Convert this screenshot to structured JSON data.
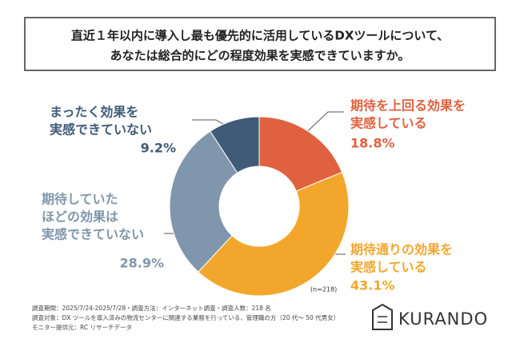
{
  "chart_data": {
    "type": "pie",
    "donut": true,
    "title": [
      "直近１年以内に導入し最も優先的に活用しているDXツールについて、",
      "あなたは総合的にどの程度効果を実感できていますか。"
    ],
    "categories": [
      [
        "期待を上回る効果を",
        "実感している"
      ],
      [
        "期待通りの効果を",
        "実感している"
      ],
      [
        "期待していた",
        "ほどの効果は",
        "実感できていない"
      ],
      [
        "まったく効果を",
        "実感できていない"
      ]
    ],
    "values": [
      18.8,
      43.1,
      28.9,
      9.2
    ],
    "value_labels": [
      "18.8%",
      "43.1%",
      "28.9%",
      "9.2%"
    ],
    "colors": [
      "#e0613f",
      "#f2a72c",
      "#8096ac",
      "#3f5b78"
    ],
    "note": "(n=218)",
    "footer": [
      "調査期間：2025/7/24-2025/7/28・調査方法：インターネット調査・調査人数：218 名",
      "調査対象：DX ツールを導入済みの物流センターに関連する業務を行っている、管理職の方（20 代〜 50 代男女）",
      "モニター提供元：RC リサーチデータ"
    ],
    "brand": "KURANDO"
  }
}
